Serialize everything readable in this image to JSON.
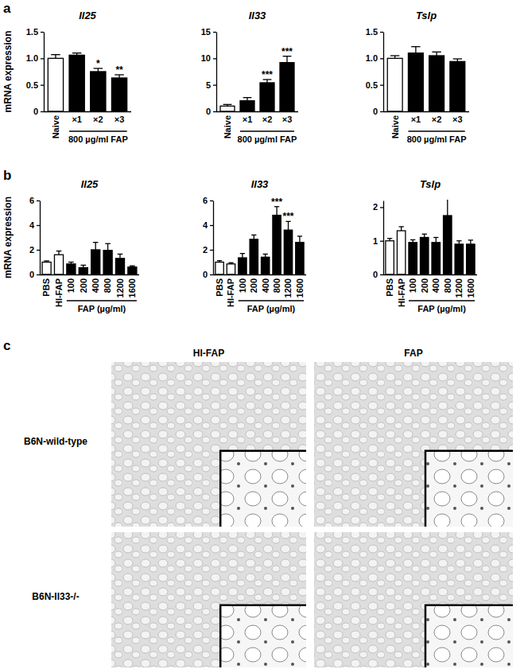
{
  "chart_data": [
    {
      "type": "bar",
      "title": "Il25",
      "y_label": "mRNA expression",
      "categories": [
        "Naive",
        "×1",
        "×2",
        "×3"
      ],
      "values": [
        1.0,
        1.06,
        0.75,
        0.63
      ],
      "errors": [
        0.07,
        0.04,
        0.06,
        0.06
      ],
      "colors": [
        "#ffffff",
        "#000000",
        "#000000",
        "#000000"
      ],
      "significance": [
        null,
        null,
        "*",
        "**"
      ],
      "group": {
        "label": "800 µg/ml FAP",
        "categories": [
          "×1",
          "×2",
          "×3"
        ]
      },
      "ylim": [
        0,
        1.5
      ],
      "yticks": [
        0,
        0.5,
        {
          "value": 1,
          "label": "1.0"
        },
        1.5
      ]
    },
    {
      "type": "bar",
      "title": "Il33",
      "categories": [
        "Naive",
        "×1",
        "×2",
        "×3"
      ],
      "values": [
        1.0,
        2.0,
        5.4,
        9.2
      ],
      "errors": [
        0.3,
        0.6,
        0.6,
        1.2
      ],
      "colors": [
        "#ffffff",
        "#000000",
        "#000000",
        "#000000"
      ],
      "significance": [
        null,
        null,
        "***",
        "***"
      ],
      "group": {
        "label": "800 µg/ml FAP",
        "categories": [
          "×1",
          "×2",
          "×3"
        ]
      },
      "ylim": [
        0,
        15
      ],
      "yticks": [
        0,
        5,
        10,
        15
      ]
    },
    {
      "type": "bar",
      "title": "Tslp",
      "categories": [
        "Naive",
        "×1",
        "×2",
        "×3"
      ],
      "values": [
        1.0,
        1.1,
        1.05,
        0.94
      ],
      "errors": [
        0.05,
        0.12,
        0.07,
        0.05
      ],
      "colors": [
        "#ffffff",
        "#000000",
        "#000000",
        "#000000"
      ],
      "group": {
        "label": "800 µg/ml FAP",
        "categories": [
          "×1",
          "×2",
          "×3"
        ]
      },
      "ylim": [
        0,
        1.5
      ],
      "yticks": [
        0,
        0.5,
        {
          "value": 1,
          "label": "1.0"
        },
        1.5
      ]
    },
    {
      "type": "bar",
      "title": "Il25",
      "y_label": "mRNA expression",
      "categories": [
        "PBS",
        "HI-FAP",
        "100",
        "200",
        "400",
        "800",
        "1200",
        "1600"
      ],
      "values": [
        1.0,
        1.6,
        0.85,
        0.55,
        2.0,
        1.95,
        1.3,
        0.6
      ],
      "errors": [
        0.1,
        0.3,
        0.15,
        0.2,
        0.6,
        0.55,
        0.35,
        0.1
      ],
      "colors": [
        "#ffffff",
        "#ffffff",
        "#000000",
        "#000000",
        "#000000",
        "#000000",
        "#000000",
        "#000000"
      ],
      "group": {
        "label": "FAP (µg/ml)",
        "categories": [
          "100",
          "200",
          "400",
          "800",
          "1200",
          "1600"
        ]
      },
      "ylim": [
        0,
        6
      ],
      "yticks": [
        0,
        2,
        4,
        6
      ]
    },
    {
      "type": "bar",
      "title": "Il33",
      "categories": [
        "PBS",
        "HI-FAP",
        "100",
        "200",
        "400",
        "800",
        "1200",
        "1600"
      ],
      "values": [
        1.0,
        0.85,
        1.35,
        2.85,
        1.4,
        4.8,
        3.6,
        2.6
      ],
      "errors": [
        0.12,
        0.1,
        0.35,
        0.35,
        0.25,
        0.7,
        0.7,
        0.5
      ],
      "colors": [
        "#ffffff",
        "#ffffff",
        "#000000",
        "#000000",
        "#000000",
        "#000000",
        "#000000",
        "#000000"
      ],
      "significance": [
        null,
        null,
        null,
        null,
        null,
        "***",
        "***",
        null
      ],
      "group": {
        "label": "FAP (µg/ml)",
        "categories": [
          "100",
          "200",
          "400",
          "800",
          "1200",
          "1600"
        ]
      },
      "ylim": [
        0,
        6
      ],
      "yticks": [
        0,
        2,
        4,
        6
      ]
    },
    {
      "type": "bar",
      "title": "Tslp",
      "categories": [
        "PBS",
        "HI-FAP",
        "100",
        "200",
        "400",
        "800",
        "1200",
        "1600"
      ],
      "values": [
        1.0,
        1.3,
        0.95,
        1.1,
        0.95,
        1.75,
        0.9,
        0.9
      ],
      "errors": [
        0.07,
        0.12,
        0.08,
        0.1,
        0.15,
        0.5,
        0.1,
        0.12
      ],
      "colors": [
        "#ffffff",
        "#ffffff",
        "#000000",
        "#000000",
        "#000000",
        "#000000",
        "#000000",
        "#000000"
      ],
      "group": {
        "label": "FAP (µg/ml)",
        "categories": [
          "100",
          "200",
          "400",
          "800",
          "1200",
          "1600"
        ]
      },
      "ylim": [
        0,
        2.2
      ],
      "yticks": [
        0,
        1,
        2
      ]
    }
  ],
  "figure": {
    "panel_labels": [
      "a",
      "b",
      "c"
    ],
    "histology": {
      "columns": [
        "HI-FAP",
        "FAP"
      ],
      "rows": [
        "B6N-wild-type",
        "B6N-Il33-/-"
      ]
    }
  }
}
